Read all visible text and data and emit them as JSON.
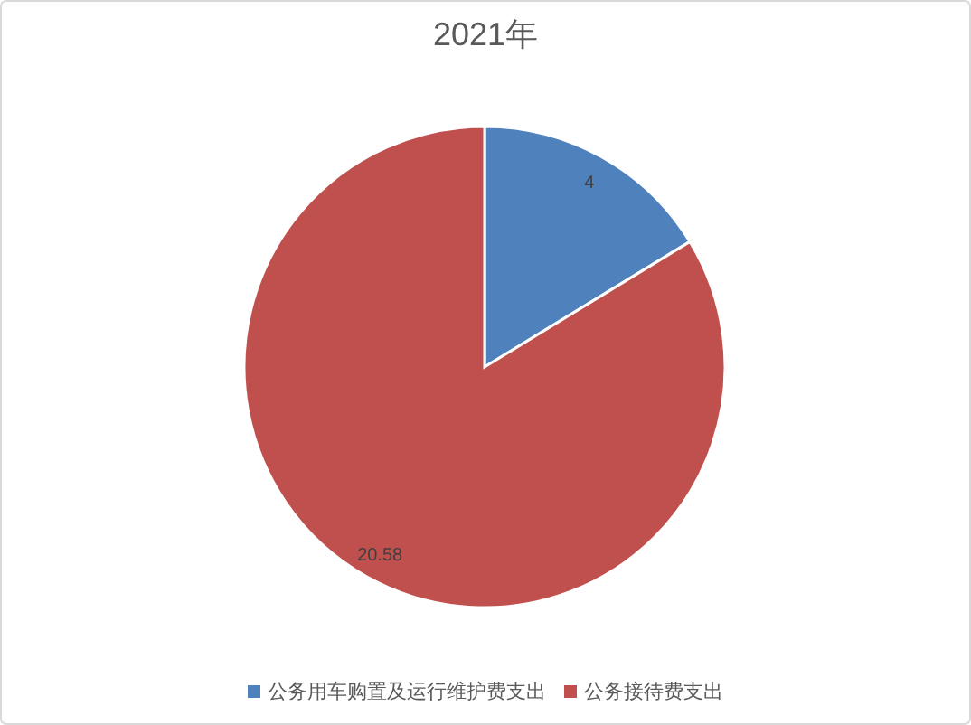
{
  "chart_data": {
    "type": "pie",
    "title": "2021年",
    "categories": [
      "公务用车购置及运行维护费支出",
      "公务接待费支出"
    ],
    "values": [
      4,
      20.58
    ],
    "colors": [
      "#4f81bd",
      "#c0504d"
    ],
    "data_labels": true,
    "legend": "bottom"
  }
}
